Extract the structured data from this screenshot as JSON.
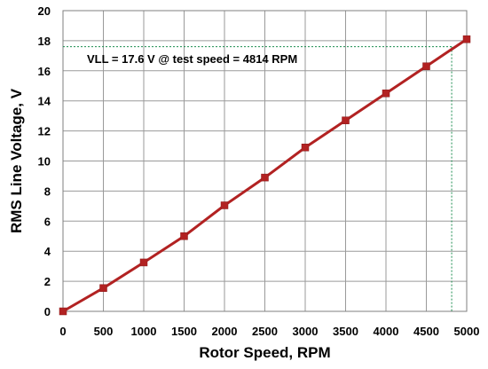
{
  "chart_data": {
    "type": "line",
    "title": "",
    "xlabel": "Rotor Speed, RPM",
    "ylabel": "RMS Line Voltage, V",
    "xlim": [
      0,
      5000
    ],
    "ylim": [
      0,
      20
    ],
    "xticks": [
      0,
      500,
      1000,
      1500,
      2000,
      2500,
      3000,
      3500,
      4000,
      4500,
      5000
    ],
    "yticks": [
      0,
      2,
      4,
      6,
      8,
      10,
      12,
      14,
      16,
      18,
      20
    ],
    "grid": true,
    "legend": "none",
    "series": [
      {
        "x": [
          0,
          500,
          1000,
          1500,
          2000,
          2500,
          3000,
          3500,
          4000,
          4500,
          5000
        ],
        "y": [
          0,
          1.55,
          3.25,
          5.0,
          7.05,
          8.9,
          10.9,
          12.7,
          14.5,
          16.3,
          18.1
        ],
        "line_color": "#b22222",
        "marker_color": "#b22222",
        "marker": "square"
      }
    ],
    "annotation": {
      "text": "VLL = 17.6  V @ test speed  = 4814  RPM",
      "x": 4814,
      "y": 17.6,
      "guide_color": "#1a8c4e"
    }
  }
}
